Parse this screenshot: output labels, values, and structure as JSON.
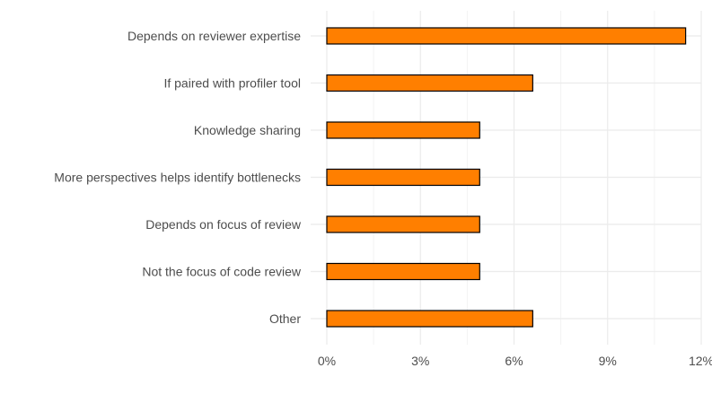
{
  "chart_data": {
    "type": "bar",
    "orientation": "horizontal",
    "title": "",
    "xlabel": "",
    "ylabel": "",
    "categories": [
      "Depends on reviewer expertise",
      "If paired with profiler tool",
      "Knowledge sharing",
      "More perspectives helps identify bottlenecks",
      "Depends on focus of review",
      "Not the focus of code review",
      "Other"
    ],
    "values": [
      11.5,
      6.6,
      4.9,
      4.9,
      4.9,
      4.9,
      6.6
    ],
    "value_unit": "%",
    "xlim": [
      0,
      12
    ],
    "x_ticks": [
      0,
      3,
      6,
      9,
      12
    ],
    "x_tick_labels": [
      "0%",
      "3%",
      "6%",
      "9%",
      "12%"
    ],
    "grid": true,
    "legend": "none",
    "colors": {
      "bar_fill": "#FF7F00",
      "bar_stroke": "#000000",
      "grid_major": "#EBEBEB",
      "grid_minor": "#F2F2F2",
      "text": "#4D4D4D"
    }
  }
}
